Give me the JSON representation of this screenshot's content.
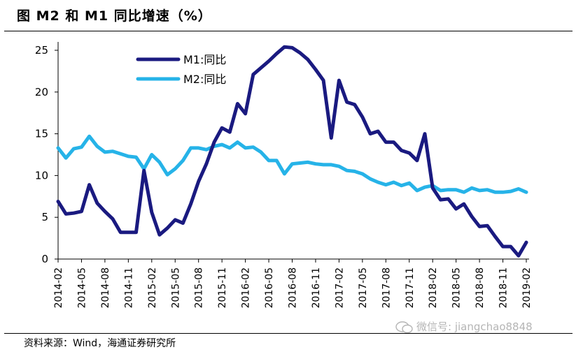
{
  "header": {
    "title": "图    M2 和 M1 同比增速（%）"
  },
  "footer": {
    "source": "资料来源：Wind，海通证券研究所"
  },
  "watermark": {
    "text": "微信号: jiangchao8848"
  },
  "colors": {
    "m1": "#1a1a80",
    "m2": "#26b3e8",
    "axis": "#000000"
  },
  "chart_data": {
    "type": "line",
    "title": "M2 和 M1 同比增速（%）",
    "ylim": [
      0,
      25
    ],
    "yticks": [
      0,
      5,
      10,
      15,
      20,
      25
    ],
    "grid": false,
    "legend_position": "top-left",
    "xtick_labels": [
      "2014-02",
      "2014-05",
      "2014-08",
      "2014-11",
      "2015-02",
      "2015-05",
      "2015-08",
      "2015-11",
      "2016-02",
      "2016-05",
      "2016-08",
      "2016-11",
      "2017-02",
      "2017-05",
      "2017-08",
      "2017-11",
      "2018-02",
      "2018-05",
      "2018-08",
      "2018-11",
      "2019-02"
    ],
    "x": [
      "2014-02",
      "2014-03",
      "2014-04",
      "2014-05",
      "2014-06",
      "2014-07",
      "2014-08",
      "2014-09",
      "2014-10",
      "2014-11",
      "2014-12",
      "2015-01",
      "2015-02",
      "2015-03",
      "2015-04",
      "2015-05",
      "2015-06",
      "2015-07",
      "2015-08",
      "2015-09",
      "2015-10",
      "2015-11",
      "2015-12",
      "2016-01",
      "2016-02",
      "2016-03",
      "2016-04",
      "2016-05",
      "2016-06",
      "2016-07",
      "2016-08",
      "2016-09",
      "2016-10",
      "2016-11",
      "2016-12",
      "2017-01",
      "2017-02",
      "2017-03",
      "2017-04",
      "2017-05",
      "2017-06",
      "2017-07",
      "2017-08",
      "2017-09",
      "2017-10",
      "2017-11",
      "2017-12",
      "2018-01",
      "2018-02",
      "2018-03",
      "2018-04",
      "2018-05",
      "2018-06",
      "2018-07",
      "2018-08",
      "2018-09",
      "2018-10",
      "2018-11",
      "2018-12",
      "2019-01",
      "2019-02"
    ],
    "series": [
      {
        "name": "M1:同比",
        "key": "m1",
        "values": [
          6.9,
          5.4,
          5.5,
          5.7,
          8.9,
          6.7,
          5.7,
          4.8,
          3.2,
          3.2,
          3.2,
          10.6,
          5.6,
          2.9,
          3.7,
          4.7,
          4.3,
          6.6,
          9.3,
          11.4,
          14.0,
          15.7,
          15.2,
          18.6,
          17.4,
          22.1,
          22.9,
          23.7,
          24.6,
          25.4,
          25.3,
          24.7,
          23.9,
          22.7,
          21.4,
          14.5,
          21.4,
          18.8,
          18.5,
          17.0,
          15.0,
          15.3,
          14.0,
          14.0,
          13.0,
          12.7,
          11.8,
          15.0,
          8.5,
          7.1,
          7.2,
          6.0,
          6.6,
          5.1,
          3.9,
          4.0,
          2.7,
          1.5,
          1.5,
          0.4,
          2.0
        ]
      },
      {
        "name": "M2:同比",
        "key": "m2",
        "values": [
          13.3,
          12.1,
          13.2,
          13.4,
          14.7,
          13.5,
          12.8,
          12.9,
          12.6,
          12.3,
          12.2,
          10.8,
          12.5,
          11.6,
          10.1,
          10.8,
          11.8,
          13.3,
          13.3,
          13.1,
          13.5,
          13.7,
          13.3,
          14.0,
          13.3,
          13.4,
          12.8,
          11.8,
          11.8,
          10.2,
          11.4,
          11.5,
          11.6,
          11.4,
          11.3,
          11.3,
          11.1,
          10.6,
          10.5,
          10.2,
          9.6,
          9.2,
          8.9,
          9.2,
          8.8,
          9.1,
          8.2,
          8.6,
          8.8,
          8.2,
          8.3,
          8.3,
          8.0,
          8.5,
          8.2,
          8.3,
          8.0,
          8.0,
          8.1,
          8.4,
          8.0
        ]
      }
    ]
  }
}
